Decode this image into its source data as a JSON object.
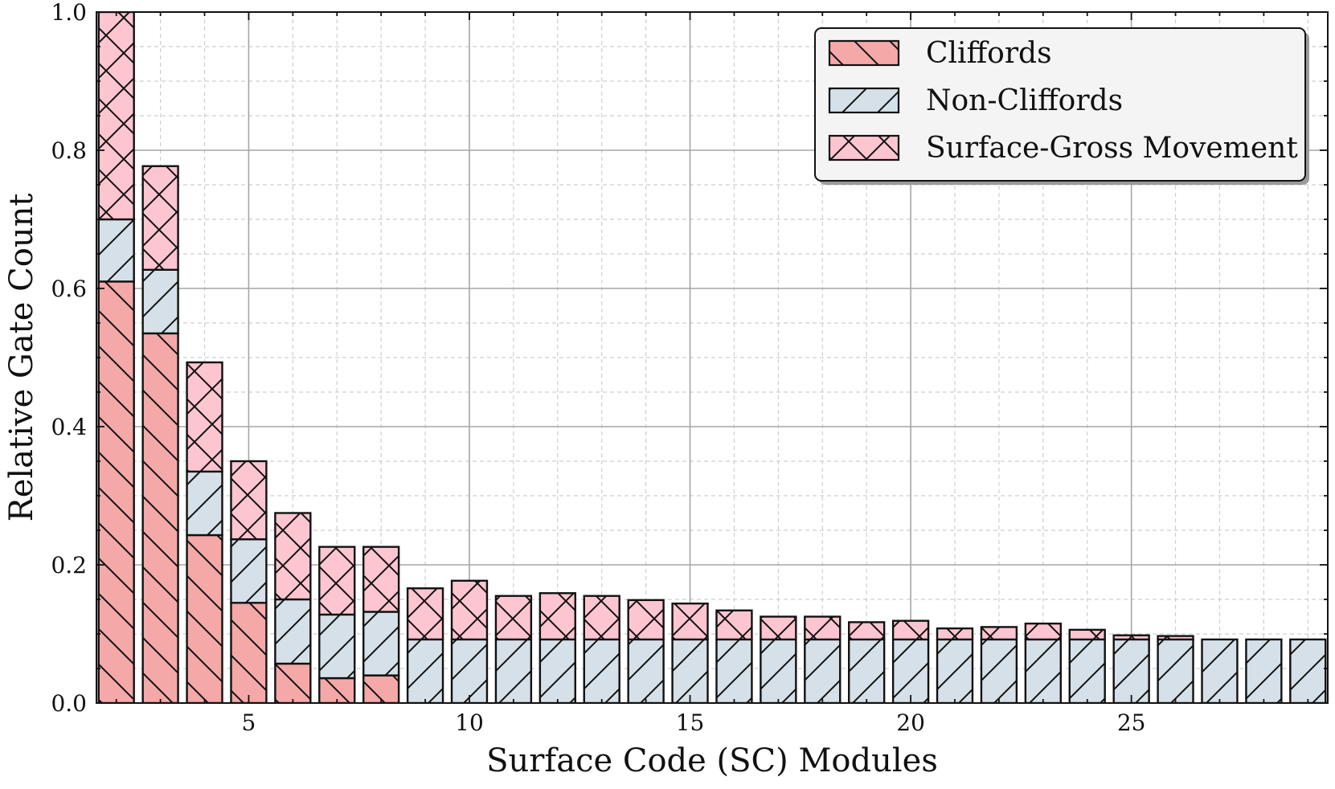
{
  "chart_data": {
    "type": "bar",
    "stacked": true,
    "title": "",
    "xlabel": "Surface Code (SC) Modules",
    "ylabel": "Relative Gate Count",
    "x": [
      2,
      3,
      4,
      5,
      6,
      7,
      8,
      9,
      10,
      11,
      12,
      13,
      14,
      15,
      16,
      17,
      18,
      19,
      20,
      21,
      22,
      23,
      24,
      25,
      26,
      27,
      28,
      29
    ],
    "xlim": [
      1.55,
      29.45
    ],
    "ylim": [
      0,
      1.0
    ],
    "xticks": [
      5,
      10,
      15,
      20,
      25
    ],
    "yticks": [
      0.0,
      0.2,
      0.4,
      0.6,
      0.8,
      1.0
    ],
    "ytick_labels": [
      "0.0",
      "0.2",
      "0.4",
      "0.6",
      "0.8",
      "1.0"
    ],
    "grid": true,
    "legend_position": "top-right",
    "series": [
      {
        "name": "Cliffords",
        "color": "#f4a8a8",
        "hatch": "backslash",
        "values": [
          0.61,
          0.535,
          0.243,
          0.145,
          0.057,
          0.036,
          0.04,
          0,
          0,
          0,
          0,
          0,
          0,
          0,
          0,
          0,
          0,
          0,
          0,
          0,
          0,
          0,
          0,
          0,
          0,
          0,
          0,
          0
        ]
      },
      {
        "name": "Non-Cliffords",
        "color": "#d5e0e8",
        "hatch": "slash",
        "values": [
          0.09,
          0.092,
          0.092,
          0.092,
          0.093,
          0.092,
          0.092,
          0.092,
          0.092,
          0.092,
          0.092,
          0.092,
          0.092,
          0.092,
          0.092,
          0.092,
          0.092,
          0.092,
          0.092,
          0.092,
          0.092,
          0.092,
          0.092,
          0.092,
          0.092,
          0.092,
          0.092,
          0.092
        ]
      },
      {
        "name": "Surface-Gross Movement",
        "color": "#fdc5d0",
        "hatch": "cross",
        "values": [
          0.3,
          0.15,
          0.158,
          0.113,
          0.125,
          0.098,
          0.094,
          0.074,
          0.085,
          0.063,
          0.067,
          0.063,
          0.057,
          0.052,
          0.042,
          0.033,
          0.033,
          0.025,
          0.027,
          0.016,
          0.018,
          0.023,
          0.014,
          0.006,
          0.005,
          0,
          0,
          0
        ]
      }
    ]
  }
}
